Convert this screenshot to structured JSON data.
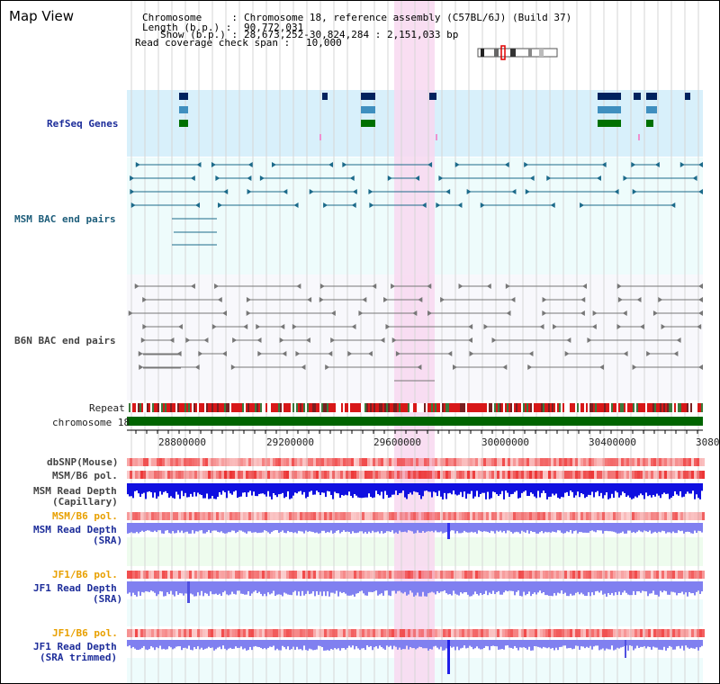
{
  "header": {
    "title": "Map View",
    "chromosome_key": "Chromosome     :",
    "chromosome_val": "Chromosome 18, reference assembly (C57BL/6J) (Build 37)",
    "length_key": "Length (b.p.) :",
    "length_val": "90,772,031",
    "show_key": "Show (b.p.) :",
    "show_val": "28,673,252-30,824,284 : 2,151,033 bp",
    "span_key": "Read coverage check span :",
    "span_val": "10,000"
  },
  "tracks": {
    "refseq": "RefSeq Genes",
    "msm_bac": "MSM BAC end pairs",
    "b6n_bac": "B6N BAC end pairs",
    "repeat": "Repeat",
    "chromosome": "chromosome 18",
    "dbsnp": "dbSNP(Mouse)",
    "msm_b6_pol_1": "MSM/B6 pol.",
    "msm_depth_cap_1": "MSM Read Depth",
    "msm_depth_cap_2": "(Capillary)",
    "msm_b6_pol_2": "MSM/B6 pol.",
    "msm_depth_sra_1": "MSM Read Depth",
    "msm_depth_sra_2": "(SRA)",
    "jf1_b6_pol_1": "JF1/B6 pol.",
    "jf1_depth_sra_1": "JF1 Read Depth",
    "jf1_depth_sra_2": "(SRA)",
    "jf1_b6_pol_2": "JF1/B6 pol.",
    "jf1_depth_tr_1": "JF1 Read Depth",
    "jf1_depth_tr_2": "(SRA trimmed)"
  },
  "axis": {
    "ticks": [
      "28800000",
      "29200000",
      "29600000",
      "30000000",
      "30400000",
      "3080"
    ]
  },
  "colors": {
    "refseq_bg": "#d8f0fb",
    "bac_bg": "#eefcfc",
    "highlight": "#f8d8f0",
    "chromosome_bar": "#006400",
    "gene_dark": "#00225e",
    "gene_mid": "#3f8fbf",
    "gene_green": "#007000",
    "msm_bac": "#1c6a8a",
    "b6n_bac": "#777777",
    "depth_blue": "#1010e0",
    "depth_light": "#8080f0",
    "pol_red": "#f04040"
  }
}
